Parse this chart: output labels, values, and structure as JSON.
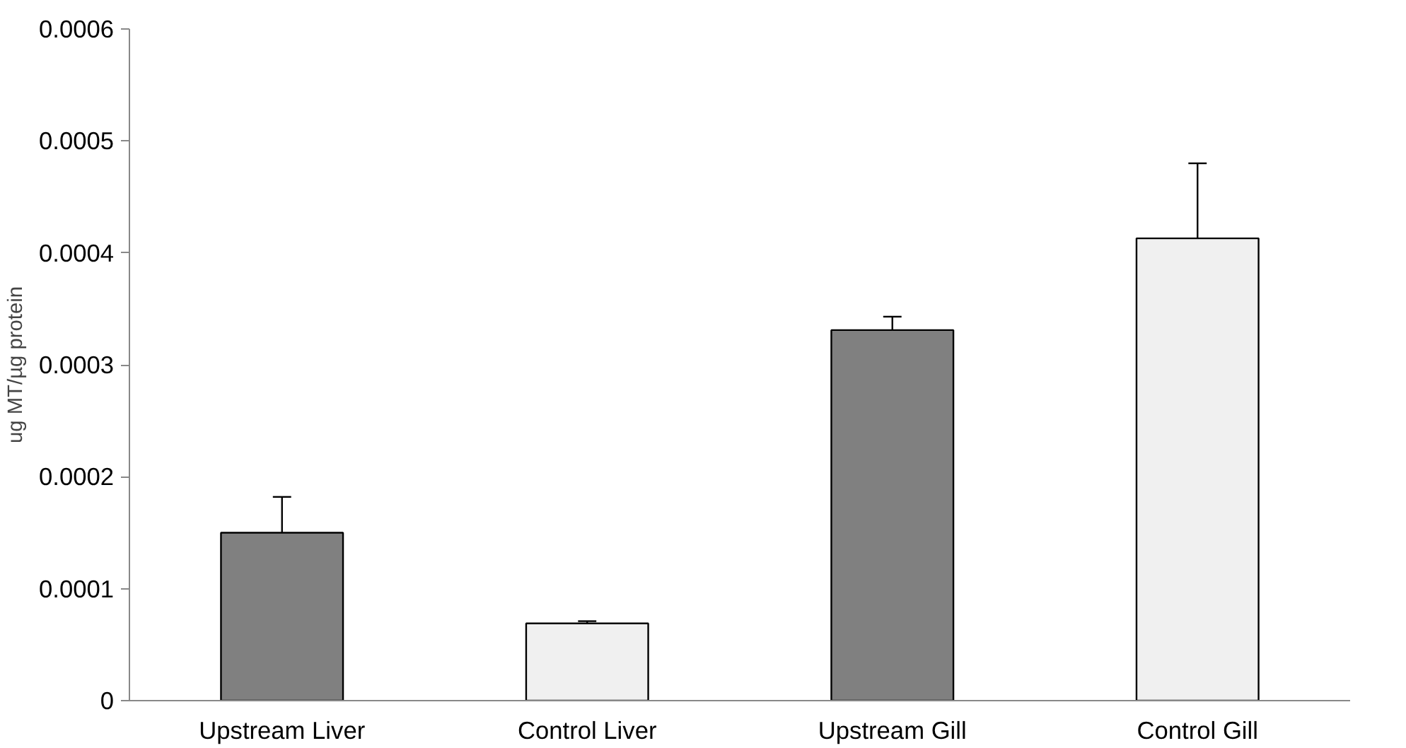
{
  "chart_data": {
    "type": "bar",
    "ylabel": "ug MT/µg protein",
    "categories": [
      "Upstream Liver",
      "Control Liver",
      "Upstream Gill",
      "Control Gill"
    ],
    "values": [
      0.00015,
      6.9e-05,
      0.000331,
      0.000413
    ],
    "colors": [
      "#808080",
      "#f0f0f0",
      "#808080",
      "#f0f0f0"
    ],
    "errors": [
      [
        0.00015,
        0.000182
      ],
      [
        6.9e-05,
        7.1e-05
      ],
      [
        0.000331,
        0.000343
      ],
      [
        0.000413,
        0.00048
      ]
    ],
    "ylim": [
      0,
      0.0006
    ],
    "yticks": [
      0,
      0.0001,
      0.0002,
      0.0003,
      0.0004,
      0.0005,
      0.0006
    ],
    "grid": false
  }
}
